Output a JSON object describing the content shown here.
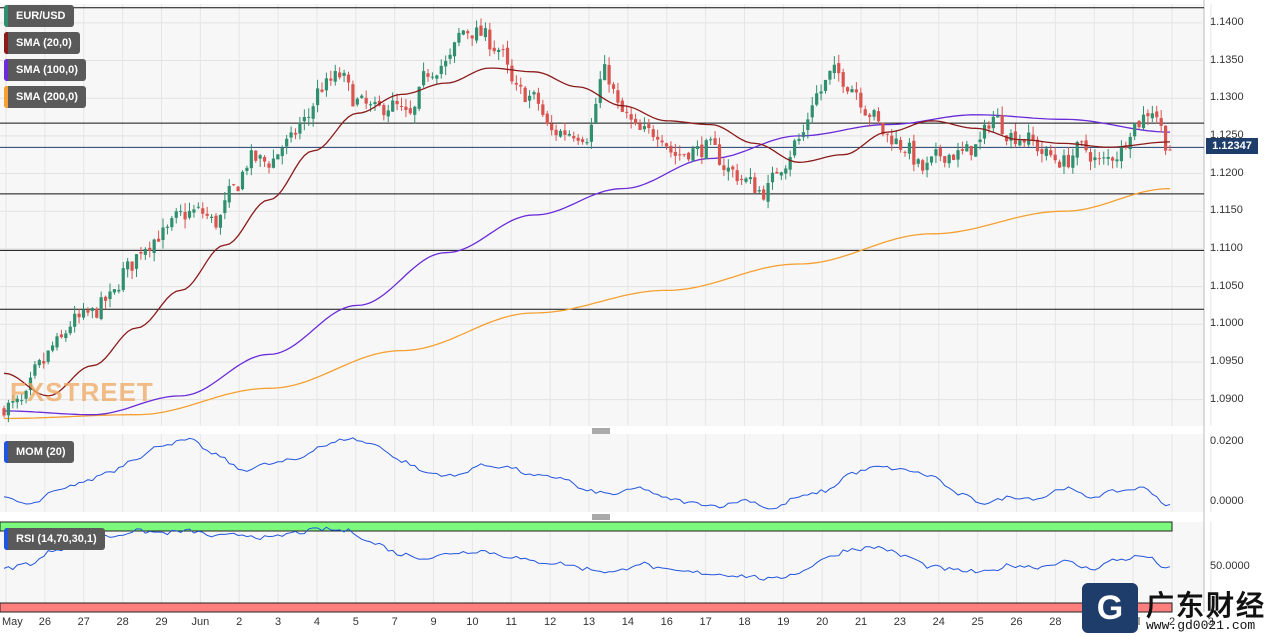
{
  "legends": {
    "pair": "EUR/USD",
    "sma20": "SMA (20,0)",
    "sma100": "SMA (100,0)",
    "sma200": "SMA (200,0)",
    "mom": "MOM (20)",
    "rsi": "RSI (14,70,30,1)"
  },
  "price_label": "1.12347",
  "watermark": {
    "brand": "FXSTREET",
    "cn": "广东财经",
    "url": "www.gd0021.com"
  },
  "colors": {
    "candle_up": "#2f8f6e",
    "candle_down": "#d9534f",
    "sma20": "#8b1a1a",
    "sma100": "#6a2bd9",
    "sma200": "#f5a030",
    "mom_line": "#2255dd",
    "rsi_line": "#2255dd",
    "rsi_overbought": "#7dfa7d",
    "rsi_oversold": "#ff7f7f",
    "price_tag": "#1f3d6b"
  },
  "chart_data": {
    "type": "candlestick",
    "pair": "EUR/USD",
    "price_axis": {
      "ticks": [
        1.09,
        1.095,
        1.1,
        1.105,
        1.11,
        1.115,
        1.12,
        1.125,
        1.13,
        1.135,
        1.14
      ],
      "tick_labels": [
        "1.0900",
        "1.0950",
        "1.1000",
        "1.1050",
        "1.1100",
        "1.1150",
        "1.1200",
        "1.1250",
        "1.1300",
        "1.1350",
        "1.1400"
      ],
      "range": [
        1.0865,
        1.1425
      ]
    },
    "x_axis_labels": [
      "May",
      "26",
      "27",
      "28",
      "29",
      "Jun",
      "2",
      "3",
      "4",
      "5",
      "7",
      "9",
      "10",
      "11",
      "12",
      "13",
      "14",
      "16",
      "17",
      "18",
      "19",
      "20",
      "21",
      "23",
      "24",
      "25",
      "26",
      "28",
      "30",
      "Jul",
      "2",
      "3"
    ],
    "horizontal_levels": [
      1.142,
      1.1267,
      1.1173,
      1.1098,
      1.102
    ],
    "current_price": 1.12347,
    "close_anchors": [
      [
        0,
        1.089
      ],
      [
        4,
        1.0895
      ],
      [
        8,
        1.0945
      ],
      [
        12,
        1.0975
      ],
      [
        16,
        1.1005
      ],
      [
        20,
        1.1015
      ],
      [
        24,
        1.1035
      ],
      [
        28,
        1.1075
      ],
      [
        32,
        1.1105
      ],
      [
        36,
        1.112
      ],
      [
        40,
        1.1145
      ],
      [
        44,
        1.115
      ],
      [
        48,
        1.1135
      ],
      [
        52,
        1.118
      ],
      [
        56,
        1.122
      ],
      [
        60,
        1.1215
      ],
      [
        64,
        1.124
      ],
      [
        68,
        1.127
      ],
      [
        72,
        1.1315
      ],
      [
        76,
        1.133
      ],
      [
        80,
        1.1295
      ],
      [
        84,
        1.1285
      ],
      [
        88,
        1.129
      ],
      [
        92,
        1.1275
      ],
      [
        96,
        1.1335
      ],
      [
        100,
        1.1345
      ],
      [
        104,
        1.139
      ],
      [
        108,
        1.1385
      ],
      [
        112,
        1.1365
      ],
      [
        116,
        1.131
      ],
      [
        120,
        1.13
      ],
      [
        124,
        1.1255
      ],
      [
        128,
        1.1255
      ],
      [
        132,
        1.125
      ],
      [
        136,
        1.1335
      ],
      [
        140,
        1.128
      ],
      [
        144,
        1.1255
      ],
      [
        148,
        1.1255
      ],
      [
        152,
        1.1225
      ],
      [
        156,
        1.123
      ],
      [
        160,
        1.1235
      ],
      [
        164,
        1.1205
      ],
      [
        168,
        1.119
      ],
      [
        172,
        1.1175
      ],
      [
        176,
        1.121
      ],
      [
        180,
        1.1245
      ],
      [
        184,
        1.1305
      ],
      [
        188,
        1.1335
      ],
      [
        192,
        1.1315
      ],
      [
        196,
        1.128
      ],
      [
        200,
        1.125
      ],
      [
        204,
        1.1235
      ],
      [
        208,
        1.1205
      ],
      [
        212,
        1.1225
      ],
      [
        216,
        1.1225
      ],
      [
        220,
        1.1235
      ],
      [
        224,
        1.1275
      ],
      [
        228,
        1.125
      ],
      [
        232,
        1.1245
      ],
      [
        236,
        1.1225
      ],
      [
        240,
        1.1215
      ],
      [
        244,
        1.1235
      ],
      [
        248,
        1.1215
      ],
      [
        252,
        1.1225
      ],
      [
        256,
        1.1265
      ],
      [
        260,
        1.1285
      ],
      [
        264,
        1.1234
      ]
    ],
    "sma20_anchors": [
      [
        0,
        1.0935
      ],
      [
        10,
        1.0905
      ],
      [
        20,
        1.0945
      ],
      [
        30,
        1.0995
      ],
      [
        40,
        1.1045
      ],
      [
        50,
        1.1105
      ],
      [
        60,
        1.1165
      ],
      [
        70,
        1.123
      ],
      [
        80,
        1.128
      ],
      [
        90,
        1.1305
      ],
      [
        100,
        1.132
      ],
      [
        110,
        1.134
      ],
      [
        120,
        1.1335
      ],
      [
        130,
        1.1315
      ],
      [
        140,
        1.129
      ],
      [
        150,
        1.127
      ],
      [
        160,
        1.1265
      ],
      [
        170,
        1.124
      ],
      [
        180,
        1.1215
      ],
      [
        190,
        1.1225
      ],
      [
        200,
        1.1255
      ],
      [
        210,
        1.127
      ],
      [
        220,
        1.126
      ],
      [
        230,
        1.1245
      ],
      [
        240,
        1.124
      ],
      [
        250,
        1.1235
      ],
      [
        264,
        1.1242
      ]
    ],
    "sma100_anchors": [
      [
        0,
        1.0885
      ],
      [
        20,
        1.088
      ],
      [
        40,
        1.0905
      ],
      [
        60,
        1.096
      ],
      [
        80,
        1.1025
      ],
      [
        100,
        1.1095
      ],
      [
        120,
        1.1145
      ],
      [
        140,
        1.118
      ],
      [
        160,
        1.122
      ],
      [
        180,
        1.125
      ],
      [
        200,
        1.1265
      ],
      [
        220,
        1.1278
      ],
      [
        240,
        1.1272
      ],
      [
        264,
        1.1255
      ]
    ],
    "sma200_anchors": [
      [
        0,
        1.0875
      ],
      [
        30,
        1.088
      ],
      [
        60,
        1.0915
      ],
      [
        90,
        1.0965
      ],
      [
        120,
        1.1015
      ],
      [
        150,
        1.1045
      ],
      [
        180,
        1.108
      ],
      [
        210,
        1.112
      ],
      [
        240,
        1.115
      ],
      [
        264,
        1.118
      ]
    ],
    "mom": {
      "label": "MOM (20)",
      "ticks": [
        0.02,
        0.0
      ],
      "tick_labels": [
        "0.0200",
        "0.0000"
      ],
      "range": [
        -0.0035,
        0.0225
      ],
      "anchors": [
        [
          0,
          0.001
        ],
        [
          6,
          -0.001
        ],
        [
          12,
          0.0035
        ],
        [
          18,
          0.0065
        ],
        [
          24,
          0.01
        ],
        [
          30,
          0.0145
        ],
        [
          36,
          0.019
        ],
        [
          42,
          0.0205
        ],
        [
          48,
          0.0155
        ],
        [
          54,
          0.0105
        ],
        [
          60,
          0.0125
        ],
        [
          66,
          0.014
        ],
        [
          72,
          0.0185
        ],
        [
          78,
          0.021
        ],
        [
          84,
          0.019
        ],
        [
          90,
          0.0135
        ],
        [
          96,
          0.0095
        ],
        [
          102,
          0.0085
        ],
        [
          108,
          0.012
        ],
        [
          114,
          0.0115
        ],
        [
          120,
          0.0085
        ],
        [
          126,
          0.008
        ],
        [
          132,
          0.0035
        ],
        [
          138,
          0.0025
        ],
        [
          144,
          0.0045
        ],
        [
          150,
          0.001
        ],
        [
          156,
          -0.0005
        ],
        [
          162,
          -0.0015
        ],
        [
          168,
          0.0005
        ],
        [
          174,
          -0.0025
        ],
        [
          180,
          0.0015
        ],
        [
          186,
          0.0035
        ],
        [
          192,
          0.0095
        ],
        [
          198,
          0.0115
        ],
        [
          204,
          0.0105
        ],
        [
          210,
          0.0085
        ],
        [
          216,
          0.0025
        ],
        [
          222,
          -0.0005
        ],
        [
          228,
          0.0015
        ],
        [
          234,
          0.001
        ],
        [
          240,
          0.0045
        ],
        [
          246,
          0.0015
        ],
        [
          252,
          0.0035
        ],
        [
          258,
          0.0045
        ],
        [
          264,
          -0.0015
        ]
      ]
    },
    "rsi": {
      "label": "RSI (14,70,30,1)",
      "ticks": [
        50
      ],
      "tick_labels": [
        "50.0000"
      ],
      "overbought": 70,
      "oversold": 30,
      "range": [
        25,
        75
      ],
      "anchors": [
        [
          0,
          49
        ],
        [
          6,
          52
        ],
        [
          12,
          60
        ],
        [
          18,
          65
        ],
        [
          24,
          67
        ],
        [
          30,
          70
        ],
        [
          36,
          69
        ],
        [
          42,
          70
        ],
        [
          48,
          67
        ],
        [
          54,
          68
        ],
        [
          60,
          66
        ],
        [
          66,
          69
        ],
        [
          72,
          71
        ],
        [
          78,
          70
        ],
        [
          84,
          63
        ],
        [
          90,
          57
        ],
        [
          96,
          55
        ],
        [
          102,
          58
        ],
        [
          108,
          59
        ],
        [
          114,
          56
        ],
        [
          120,
          53
        ],
        [
          126,
          52
        ],
        [
          132,
          49
        ],
        [
          138,
          47
        ],
        [
          144,
          52
        ],
        [
          150,
          48
        ],
        [
          156,
          47
        ],
        [
          162,
          46
        ],
        [
          168,
          45
        ],
        [
          174,
          43
        ],
        [
          180,
          47
        ],
        [
          186,
          55
        ],
        [
          192,
          60
        ],
        [
          198,
          61
        ],
        [
          204,
          56
        ],
        [
          210,
          50
        ],
        [
          216,
          48
        ],
        [
          222,
          47
        ],
        [
          228,
          51
        ],
        [
          234,
          50
        ],
        [
          240,
          53
        ],
        [
          246,
          49
        ],
        [
          252,
          54
        ],
        [
          258,
          56
        ],
        [
          264,
          49
        ]
      ]
    }
  }
}
